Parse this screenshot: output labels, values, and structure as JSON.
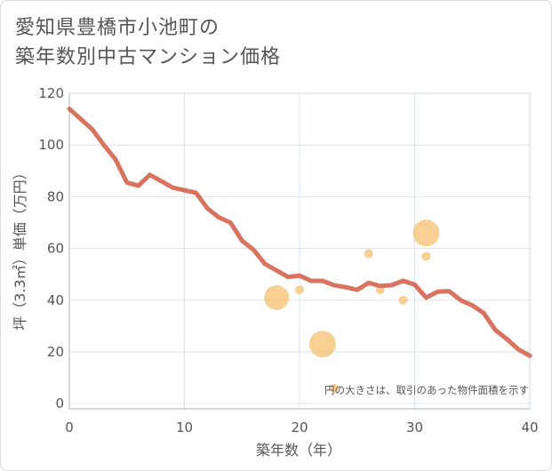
{
  "chart_data": {
    "type": "line",
    "title_line1": "愛知県豊橋市小池町の",
    "title_line2": "築年数別中古マンション価格",
    "xlabel": "築年数（年）",
    "ylabel": "坪（3.3㎡）単価（万円）",
    "xlim": [
      0,
      40
    ],
    "ylim": [
      -2,
      120
    ],
    "xticks": [
      0,
      10,
      20,
      30,
      40
    ],
    "yticks": [
      0,
      20,
      40,
      60,
      80,
      100,
      120
    ],
    "grid": true,
    "note": "円の大きさは、取引のあった物件面積を示す",
    "colors": {
      "line": "#d9735f",
      "bubble": "#f5c070",
      "grid": "#d7e3ee"
    },
    "line": {
      "x": [
        0,
        1,
        2,
        3,
        4,
        5,
        6,
        7,
        8,
        9,
        10,
        11,
        12,
        13,
        14,
        15,
        16,
        17,
        18,
        19,
        20,
        21,
        22,
        23,
        24,
        25,
        26,
        27,
        28,
        29,
        30,
        31,
        32,
        33,
        34,
        35,
        36,
        37,
        38,
        39,
        40
      ],
      "y": [
        114,
        110,
        106,
        100,
        94.5,
        85.5,
        84.3,
        88.5,
        86,
        83.5,
        82.5,
        81.5,
        75.5,
        72,
        70,
        63,
        59.5,
        54,
        51.5,
        49,
        49.5,
        47.5,
        47.5,
        45.8,
        45,
        44,
        46.7,
        45.5,
        45.8,
        47.5,
        46,
        41,
        43.3,
        43.5,
        40,
        38,
        35,
        28.5,
        25,
        21,
        18.5
      ]
    },
    "bubbles": [
      {
        "x": 18,
        "y": 41,
        "size": 14
      },
      {
        "x": 20,
        "y": 44,
        "size": 5
      },
      {
        "x": 22,
        "y": 23,
        "size": 15
      },
      {
        "x": 23,
        "y": 6,
        "size": 5
      },
      {
        "x": 26,
        "y": 58,
        "size": 5
      },
      {
        "x": 27,
        "y": 44,
        "size": 5
      },
      {
        "x": 29,
        "y": 40,
        "size": 5
      },
      {
        "x": 31,
        "y": 66,
        "size": 15
      },
      {
        "x": 31,
        "y": 57,
        "size": 5
      }
    ]
  }
}
